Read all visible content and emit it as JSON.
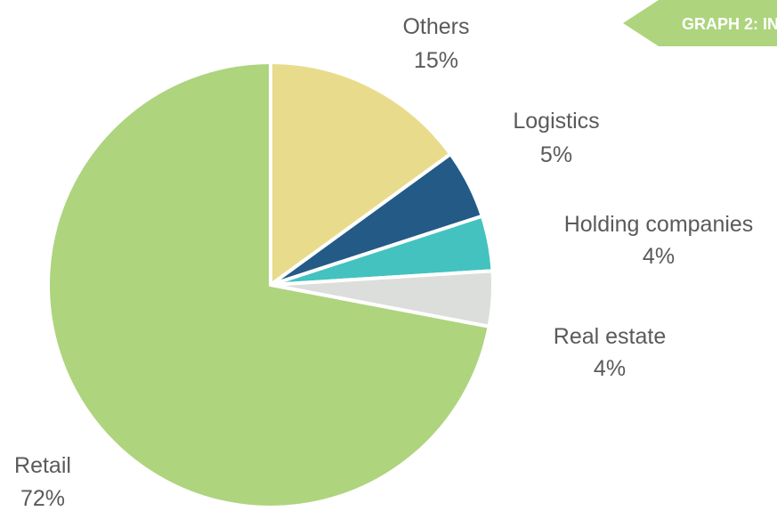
{
  "chart_data": {
    "type": "pie",
    "title": "GRAPH 2: IN",
    "categories": [
      "Others",
      "Logistics",
      "Holding companies",
      "Real estate",
      "Retail"
    ],
    "values": [
      15,
      5,
      4,
      4,
      72
    ],
    "value_labels": [
      "15%",
      "5%",
      "4%",
      "4%",
      "72%"
    ],
    "colors": [
      "#e8dc8c",
      "#235a86",
      "#43c2c0",
      "#dcdedb",
      "#aed47e"
    ]
  }
}
